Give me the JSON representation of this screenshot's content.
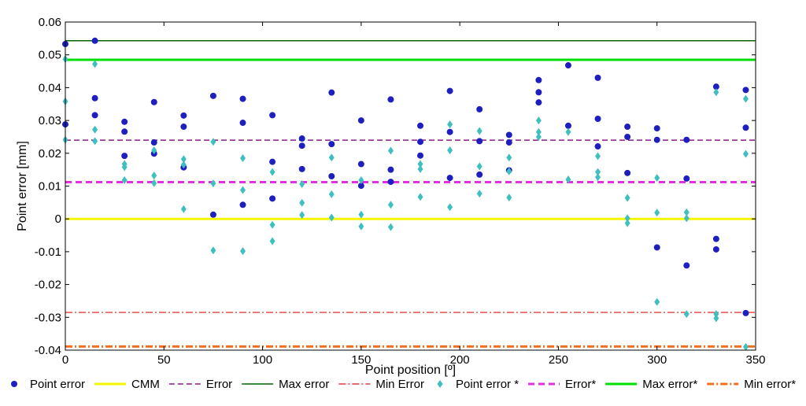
{
  "chart_data": {
    "type": "scatter",
    "xlabel": "Point position [º]",
    "ylabel": "Point error [mm]",
    "xlim": [
      0,
      350
    ],
    "ylim": [
      -0.04,
      0.06
    ],
    "xticks": [
      0,
      50,
      100,
      150,
      200,
      250,
      300,
      350
    ],
    "yticks": [
      -0.04,
      -0.03,
      -0.02,
      -0.01,
      0,
      0.01,
      0.02,
      0.03,
      0.04,
      0.05,
      0.06
    ],
    "ytick_labels": [
      "-0.04",
      "-0.03",
      "-0.02",
      "-0.01",
      "0",
      "0.01",
      "0.02",
      "0.03",
      "0.04",
      "0.05",
      "0.06"
    ],
    "grid": false,
    "legend_position": "bottom",
    "series": [
      {
        "name": "Point error",
        "kind": "points",
        "marker": "circle",
        "color": "#1f1fbf",
        "points": [
          [
            0,
            0.0533
          ],
          [
            0,
            0.0288
          ],
          [
            15,
            0.0543
          ],
          [
            15,
            0.0368
          ],
          [
            15,
            0.0316
          ],
          [
            30,
            0.0296
          ],
          [
            30,
            0.0266
          ],
          [
            30,
            0.0192
          ],
          [
            45,
            0.0356
          ],
          [
            45,
            0.0233
          ],
          [
            45,
            0.0199
          ],
          [
            60,
            0.0315
          ],
          [
            60,
            0.0281
          ],
          [
            60,
            0.0157
          ],
          [
            75,
            0.0375
          ],
          [
            75,
            0.0013
          ],
          [
            90,
            0.0366
          ],
          [
            90,
            0.0293
          ],
          [
            90,
            0.0043
          ],
          [
            105,
            0.0316
          ],
          [
            105,
            0.0174
          ],
          [
            105,
            0.0062
          ],
          [
            120,
            0.0245
          ],
          [
            120,
            0.0223
          ],
          [
            120,
            0.0152
          ],
          [
            135,
            0.0385
          ],
          [
            135,
            0.0228
          ],
          [
            135,
            0.013
          ],
          [
            150,
            0.03
          ],
          [
            150,
            0.0167
          ],
          [
            150,
            0.0101
          ],
          [
            165,
            0.0364
          ],
          [
            165,
            0.015
          ],
          [
            165,
            0.0113
          ],
          [
            180,
            0.0284
          ],
          [
            180,
            0.0235
          ],
          [
            180,
            0.0193
          ],
          [
            195,
            0.039
          ],
          [
            195,
            0.0265
          ],
          [
            195,
            0.0125
          ],
          [
            210,
            0.0334
          ],
          [
            210,
            0.0237
          ],
          [
            210,
            0.0135
          ],
          [
            225,
            0.0256
          ],
          [
            225,
            0.0233
          ],
          [
            225,
            0.0148
          ],
          [
            240,
            0.0423
          ],
          [
            240,
            0.0386
          ],
          [
            240,
            0.0355
          ],
          [
            255,
            0.0468
          ],
          [
            255,
            0.0284
          ],
          [
            270,
            0.043
          ],
          [
            270,
            0.0305
          ],
          [
            270,
            0.0221
          ],
          [
            285,
            0.0281
          ],
          [
            285,
            0.025
          ],
          [
            285,
            0.014
          ],
          [
            300,
            0.0276
          ],
          [
            300,
            0.0241
          ],
          [
            300,
            -0.0087
          ],
          [
            315,
            0.0241
          ],
          [
            315,
            0.0123
          ],
          [
            315,
            -0.0142
          ],
          [
            330,
            0.0403
          ],
          [
            330,
            -0.0061
          ],
          [
            330,
            -0.0093
          ],
          [
            345,
            0.0393
          ],
          [
            345,
            0.0278
          ],
          [
            345,
            -0.0287
          ]
        ]
      },
      {
        "name": "CMM",
        "kind": "hline",
        "y": 0.0,
        "color": "#f5f500",
        "width": 3,
        "dash": ""
      },
      {
        "name": "Error",
        "kind": "hline",
        "y": 0.024,
        "color": "#8b1a8b",
        "width": 1.5,
        "dash": "7,4"
      },
      {
        "name": "Max error",
        "kind": "hline",
        "y": 0.0543,
        "color": "#006400",
        "width": 1.5,
        "dash": ""
      },
      {
        "name": "Min Error",
        "kind": "hline",
        "y": -0.0285,
        "color": "#e01010",
        "width": 1.2,
        "dash": "9,3,2,3"
      },
      {
        "name": "Point error *",
        "kind": "points",
        "marker": "diamond",
        "color": "#3fbfbf",
        "points": [
          [
            0,
            0.0487
          ],
          [
            0,
            0.0358
          ],
          [
            0,
            0.0241
          ],
          [
            15,
            0.0472
          ],
          [
            15,
            0.0272
          ],
          [
            15,
            0.0237
          ],
          [
            30,
            0.0167
          ],
          [
            30,
            0.0158
          ],
          [
            30,
            0.0118
          ],
          [
            45,
            0.0209
          ],
          [
            45,
            0.0132
          ],
          [
            45,
            0.0109
          ],
          [
            60,
            0.0182
          ],
          [
            60,
            0.0165
          ],
          [
            60,
            0.003
          ],
          [
            75,
            0.0235
          ],
          [
            75,
            0.0108
          ],
          [
            75,
            -0.0096
          ],
          [
            90,
            0.0185
          ],
          [
            90,
            0.0088
          ],
          [
            90,
            -0.0098
          ],
          [
            105,
            0.0143
          ],
          [
            105,
            -0.0018
          ],
          [
            105,
            -0.0068
          ],
          [
            120,
            0.0106
          ],
          [
            120,
            0.0049
          ],
          [
            120,
            0.0012
          ],
          [
            135,
            0.0187
          ],
          [
            135,
            0.0075
          ],
          [
            135,
            0.0004
          ],
          [
            150,
            0.0118
          ],
          [
            150,
            0.0013
          ],
          [
            150,
            -0.0023
          ],
          [
            165,
            0.0208
          ],
          [
            165,
            0.0043
          ],
          [
            165,
            -0.0025
          ],
          [
            180,
            0.0167
          ],
          [
            180,
            0.0152
          ],
          [
            180,
            0.0067
          ],
          [
            195,
            0.0288
          ],
          [
            195,
            0.0209
          ],
          [
            195,
            0.0036
          ],
          [
            210,
            0.0268
          ],
          [
            210,
            0.016
          ],
          [
            210,
            0.0077
          ],
          [
            225,
            0.0187
          ],
          [
            225,
            0.0145
          ],
          [
            225,
            0.0065
          ],
          [
            240,
            0.03
          ],
          [
            240,
            0.0265
          ],
          [
            240,
            0.025
          ],
          [
            255,
            0.0265
          ],
          [
            255,
            0.012
          ],
          [
            270,
            0.0191
          ],
          [
            270,
            0.0143
          ],
          [
            270,
            0.0127
          ],
          [
            285,
            0.0064
          ],
          [
            285,
            0.0002
          ],
          [
            285,
            -0.0013
          ],
          [
            300,
            0.0125
          ],
          [
            300,
            0.0019
          ],
          [
            300,
            -0.0253
          ],
          [
            315,
            0.002
          ],
          [
            315,
            0.0002
          ],
          [
            315,
            -0.029
          ],
          [
            330,
            0.0386
          ],
          [
            330,
            -0.029
          ],
          [
            330,
            -0.0303
          ],
          [
            345,
            0.0366
          ],
          [
            345,
            0.0198
          ],
          [
            345,
            -0.039
          ]
        ]
      },
      {
        "name": "Error*",
        "kind": "hline",
        "y": 0.0112,
        "color": "#e030e0",
        "width": 3,
        "dash": "8,5"
      },
      {
        "name": "Max error*",
        "kind": "hline",
        "y": 0.0485,
        "color": "#00e000",
        "width": 3,
        "dash": ""
      },
      {
        "name": "Min error*",
        "kind": "hline",
        "y": -0.0389,
        "color": "#f07020",
        "width": 3,
        "dash": "9,3,2,3"
      }
    ]
  }
}
